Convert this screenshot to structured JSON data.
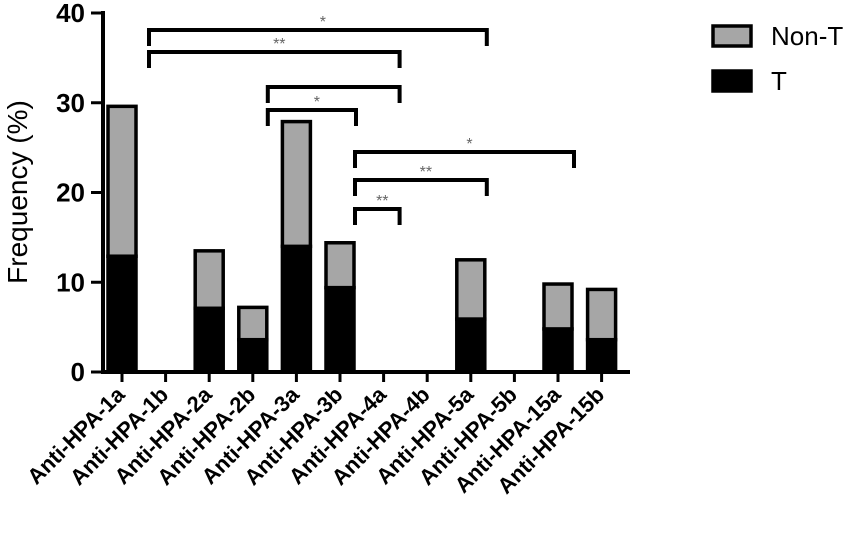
{
  "chart_data": {
    "type": "bar",
    "stacked": true,
    "title": "",
    "xlabel": "",
    "ylabel": "Frequency (%)",
    "ylim": [
      0,
      40
    ],
    "yticks": [
      0,
      10,
      20,
      30,
      40
    ],
    "categories": [
      "Anti-HPA-1a",
      "Anti-HPA-1b",
      "Anti-HPA-2a",
      "Anti-HPA-2b",
      "Anti-HPA-3a",
      "Anti-HPA-3b",
      "Anti-HPA-4a",
      "Anti-HPA-4b",
      "Anti-HPA-5a",
      "Anti-HPA-5b",
      "Anti-HPA-15a",
      "Anti-HPA-15b"
    ],
    "series": [
      {
        "name": "T",
        "color": "#000000",
        "values": [
          12.9,
          0,
          7.1,
          3.6,
          14.0,
          9.4,
          0,
          0,
          5.9,
          0,
          4.8,
          3.6
        ]
      },
      {
        "name": "Non-T",
        "color": "#a6a6a6",
        "values": [
          16.7,
          0,
          6.4,
          3.6,
          13.9,
          5.0,
          0,
          0,
          6.6,
          0,
          5.0,
          5.6
        ]
      }
    ],
    "legend_position": "top-right",
    "significance": [
      {
        "from": "Anti-HPA-1a",
        "to": "Anti-HPA-5a",
        "label": "*"
      },
      {
        "from": "Anti-HPA-1a",
        "to": "Anti-HPA-4a",
        "label": "**"
      },
      {
        "from": "Anti-HPA-2b",
        "to": "Anti-HPA-4a",
        "label": ""
      },
      {
        "from": "Anti-HPA-2b",
        "to": "Anti-HPA-3b",
        "label": "*"
      },
      {
        "from": "Anti-HPA-3b",
        "to": "Anti-HPA-15a",
        "label": "*"
      },
      {
        "from": "Anti-HPA-3b",
        "to": "Anti-HPA-5a",
        "label": "**"
      },
      {
        "from": "Anti-HPA-3b",
        "to": "Anti-HPA-4a",
        "label": "**"
      }
    ]
  }
}
